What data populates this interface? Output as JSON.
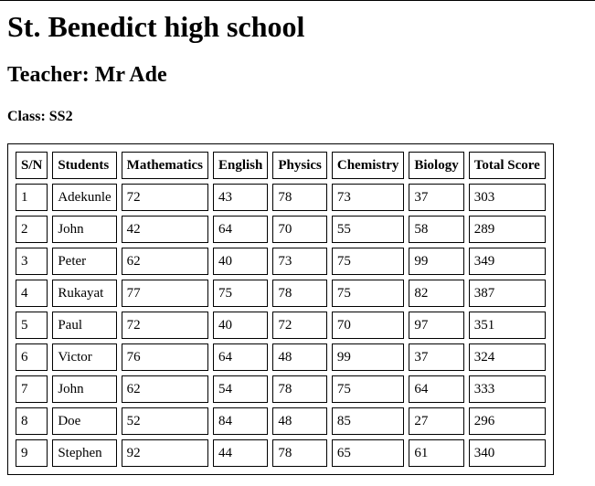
{
  "school_name": "St. Benedict high school",
  "teacher_heading": "Teacher: Mr Ade",
  "class_heading": "Class: SS2",
  "table": {
    "headers": [
      "S/N",
      "Students",
      "Mathematics",
      "English",
      "Physics",
      "Chemistry",
      "Biology",
      "Total Score"
    ],
    "rows": [
      [
        "1",
        "Adekunle",
        "72",
        "43",
        "78",
        "73",
        "37",
        "303"
      ],
      [
        "2",
        "John",
        "42",
        "64",
        "70",
        "55",
        "58",
        "289"
      ],
      [
        "3",
        "Peter",
        "62",
        "40",
        "73",
        "75",
        "99",
        "349"
      ],
      [
        "4",
        "Rukayat",
        "77",
        "75",
        "78",
        "75",
        "82",
        "387"
      ],
      [
        "5",
        "Paul",
        "72",
        "40",
        "72",
        "70",
        "97",
        "351"
      ],
      [
        "6",
        "Victor",
        "76",
        "64",
        "48",
        "99",
        "37",
        "324"
      ],
      [
        "7",
        "John",
        "62",
        "54",
        "78",
        "75",
        "64",
        "333"
      ],
      [
        "8",
        "Doe",
        "52",
        "84",
        "48",
        "85",
        "27",
        "296"
      ],
      [
        "9",
        "Stephen",
        "92",
        "44",
        "78",
        "65",
        "61",
        "340"
      ]
    ]
  }
}
